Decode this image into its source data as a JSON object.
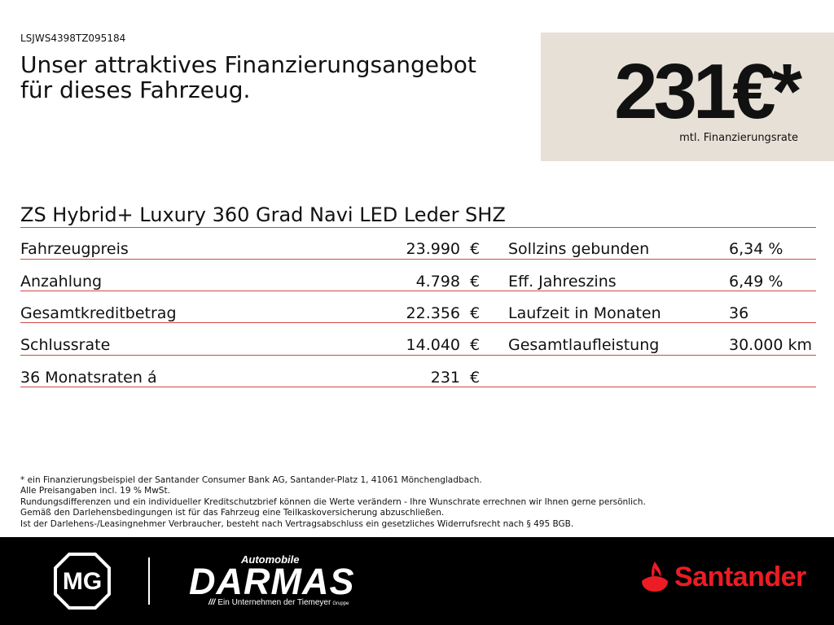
{
  "vin": "LSJWS4398TZ095184",
  "headline": {
    "line1": "Unser attraktives Finanzierungsangebot",
    "line2": "für dieses Fahrzeug."
  },
  "price_box": {
    "rate": "231€*",
    "caption": "mtl. Finanzierungsrate",
    "background": "#e6e0d6"
  },
  "model": "ZS Hybrid+ Luxury 360 Grad Navi LED Leder SHZ",
  "left_table": [
    {
      "label": "Fahrzeugpreis",
      "value": "23.990",
      "unit": "€"
    },
    {
      "label": "Anzahlung",
      "value": "4.798",
      "unit": "€"
    },
    {
      "label": "Gesamtkreditbetrag",
      "value": "22.356",
      "unit": "€"
    },
    {
      "label": "Schlussrate",
      "value": "14.040",
      "unit": "€"
    },
    {
      "label": "36 Monatsraten á",
      "value": "231",
      "unit": "€"
    }
  ],
  "right_table": [
    {
      "label": "Sollzins gebunden",
      "value": "6,34 %"
    },
    {
      "label": "Eff. Jahreszins",
      "value": "6,49 %"
    },
    {
      "label": "Laufzeit in Monaten",
      "value": "36"
    },
    {
      "label": "Gesamtlaufleistung",
      "value": "30.000 km"
    }
  ],
  "footnotes": [
    "* ein Finanzierungsbeispiel der Santander Consumer Bank AG, Santander-Platz 1, 41061 Mönchengladbach.",
    "Alle Preisangaben incl. 19 % MwSt.",
    "Rundungsdifferenzen und ein individueller Kreditschutzbrief können die Werte verändern - Ihre Wunschrate errechnen wir Ihnen gerne persönlich.",
    "Gemäß den Darlehensbedingungen ist für das Fahrzeug eine Teilkaskoversicherung abzuschließen.",
    "Ist der Darlehens-/Leasingnehmer Verbraucher, besteht nach Vertragsabschluss ein gesetzliches Widerrufsrecht nach § 495 BGB."
  ],
  "footer": {
    "mg_logo": "MG",
    "dealer_top": "Automobile",
    "dealer_name": "DARMAS",
    "dealer_sub_prefix": "///",
    "dealer_sub": "Ein Unternehmen der Tiemeyer",
    "dealer_sub_suffix": "Gruppe",
    "bank": "Santander",
    "bank_color": "#ec1c24",
    "icons": [
      "mg-logo-icon",
      "santander-flame-icon"
    ]
  },
  "colors": {
    "rule": "#d04848",
    "footer_bg": "#000000",
    "text": "#111111"
  }
}
